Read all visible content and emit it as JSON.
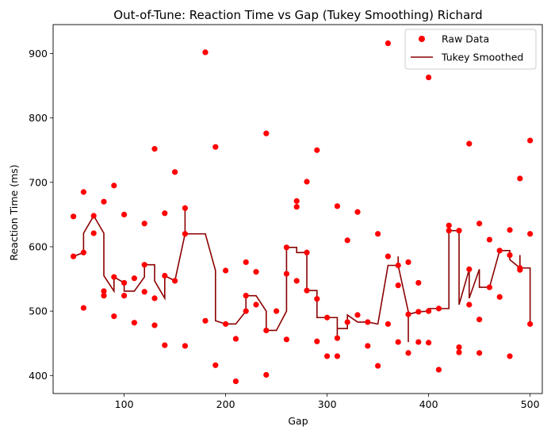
{
  "chart_data": {
    "type": "scatter",
    "title": "Out-of-Tune: Reaction Time vs Gap (Tukey Smoothing) Richard",
    "xlabel": "Gap",
    "ylabel": "Reaction Time (ms)",
    "xlim": [
      30,
      512
    ],
    "ylim": [
      372,
      945
    ],
    "xticks": [
      100,
      200,
      300,
      400,
      500
    ],
    "yticks": [
      400,
      500,
      600,
      700,
      800,
      900
    ],
    "grid": false,
    "legend_position": "top-right",
    "colors": {
      "raw": "#ff0000",
      "smoothed": "#8b0000"
    },
    "series": [
      {
        "name": "Raw Data",
        "kind": "scatter",
        "points": [
          [
            50,
            647
          ],
          [
            50,
            585
          ],
          [
            60,
            685
          ],
          [
            60,
            591
          ],
          [
            60,
            505
          ],
          [
            70,
            648
          ],
          [
            70,
            621
          ],
          [
            80,
            670
          ],
          [
            80,
            531
          ],
          [
            80,
            524
          ],
          [
            90,
            695
          ],
          [
            90,
            553
          ],
          [
            90,
            492
          ],
          [
            100,
            650
          ],
          [
            100,
            544
          ],
          [
            100,
            524
          ],
          [
            110,
            551
          ],
          [
            110,
            482
          ],
          [
            120,
            636
          ],
          [
            120,
            572
          ],
          [
            120,
            530
          ],
          [
            130,
            752
          ],
          [
            130,
            520
          ],
          [
            130,
            478
          ],
          [
            140,
            652
          ],
          [
            140,
            555
          ],
          [
            140,
            447
          ],
          [
            150,
            716
          ],
          [
            150,
            547
          ],
          [
            160,
            660
          ],
          [
            160,
            620
          ],
          [
            160,
            446
          ],
          [
            180,
            902
          ],
          [
            180,
            485
          ],
          [
            190,
            755
          ],
          [
            190,
            416
          ],
          [
            200,
            563
          ],
          [
            200,
            480
          ],
          [
            210,
            457
          ],
          [
            210,
            391
          ],
          [
            220,
            576
          ],
          [
            220,
            524
          ],
          [
            220,
            500
          ],
          [
            230,
            561
          ],
          [
            230,
            510
          ],
          [
            240,
            776
          ],
          [
            240,
            470
          ],
          [
            240,
            401
          ],
          [
            250,
            500
          ],
          [
            260,
            599
          ],
          [
            260,
            558
          ],
          [
            260,
            456
          ],
          [
            270,
            671
          ],
          [
            270,
            662
          ],
          [
            270,
            547
          ],
          [
            280,
            701
          ],
          [
            280,
            591
          ],
          [
            280,
            532
          ],
          [
            290,
            750
          ],
          [
            290,
            519
          ],
          [
            290,
            453
          ],
          [
            300,
            490
          ],
          [
            300,
            430
          ],
          [
            310,
            663
          ],
          [
            310,
            458
          ],
          [
            310,
            430
          ],
          [
            320,
            610
          ],
          [
            320,
            483
          ],
          [
            330,
            654
          ],
          [
            330,
            494
          ],
          [
            340,
            483
          ],
          [
            340,
            446
          ],
          [
            350,
            620
          ],
          [
            350,
            415
          ],
          [
            360,
            916
          ],
          [
            360,
            585
          ],
          [
            360,
            480
          ],
          [
            370,
            571
          ],
          [
            370,
            540
          ],
          [
            370,
            452
          ],
          [
            380,
            576
          ],
          [
            380,
            495
          ],
          [
            380,
            435
          ],
          [
            390,
            544
          ],
          [
            390,
            499
          ],
          [
            390,
            452
          ],
          [
            400,
            863
          ],
          [
            400,
            500
          ],
          [
            400,
            451
          ],
          [
            410,
            504
          ],
          [
            410,
            409
          ],
          [
            420,
            633
          ],
          [
            420,
            625
          ],
          [
            430,
            625
          ],
          [
            430,
            444
          ],
          [
            430,
            436
          ],
          [
            440,
            760
          ],
          [
            440,
            565
          ],
          [
            440,
            510
          ],
          [
            450,
            636
          ],
          [
            450,
            487
          ],
          [
            450,
            435
          ],
          [
            460,
            611
          ],
          [
            460,
            537
          ],
          [
            470,
            594
          ],
          [
            470,
            522
          ],
          [
            480,
            626
          ],
          [
            480,
            587
          ],
          [
            480,
            430
          ],
          [
            490,
            706
          ],
          [
            490,
            567
          ],
          [
            490,
            564
          ],
          [
            500,
            765
          ],
          [
            500,
            620
          ],
          [
            500,
            480
          ]
        ]
      },
      {
        "name": "Tukey Smoothed",
        "kind": "line",
        "points": [
          [
            50,
            585
          ],
          [
            60,
            591
          ],
          [
            60,
            621
          ],
          [
            70,
            648
          ],
          [
            80,
            621
          ],
          [
            80,
            555
          ],
          [
            90,
            531
          ],
          [
            90,
            553
          ],
          [
            100,
            544
          ],
          [
            100,
            531
          ],
          [
            110,
            531
          ],
          [
            120,
            553
          ],
          [
            120,
            572
          ],
          [
            130,
            572
          ],
          [
            130,
            547
          ],
          [
            140,
            520
          ],
          [
            140,
            555
          ],
          [
            150,
            547
          ],
          [
            160,
            620
          ],
          [
            160,
            660
          ],
          [
            160,
            620
          ],
          [
            180,
            620
          ],
          [
            190,
            563
          ],
          [
            190,
            485
          ],
          [
            200,
            480
          ],
          [
            210,
            480
          ],
          [
            220,
            500
          ],
          [
            220,
            524
          ],
          [
            230,
            524
          ],
          [
            240,
            500
          ],
          [
            240,
            470
          ],
          [
            250,
            470
          ],
          [
            260,
            500
          ],
          [
            260,
            599
          ],
          [
            270,
            599
          ],
          [
            270,
            591
          ],
          [
            280,
            591
          ],
          [
            280,
            532
          ],
          [
            290,
            532
          ],
          [
            290,
            490
          ],
          [
            300,
            490
          ],
          [
            310,
            490
          ],
          [
            310,
            458
          ],
          [
            310,
            473
          ],
          [
            320,
            473
          ],
          [
            320,
            494
          ],
          [
            330,
            483
          ],
          [
            340,
            483
          ],
          [
            350,
            480
          ],
          [
            360,
            571
          ],
          [
            370,
            571
          ],
          [
            370,
            585
          ],
          [
            370,
            571
          ],
          [
            380,
            499
          ],
          [
            380,
            452
          ],
          [
            380,
            495
          ],
          [
            390,
            499
          ],
          [
            400,
            500
          ],
          [
            400,
            504
          ],
          [
            410,
            504
          ],
          [
            420,
            504
          ],
          [
            420,
            625
          ],
          [
            430,
            625
          ],
          [
            430,
            510
          ],
          [
            440,
            565
          ],
          [
            440,
            520
          ],
          [
            450,
            565
          ],
          [
            450,
            537
          ],
          [
            460,
            537
          ],
          [
            460,
            537
          ],
          [
            470,
            594
          ],
          [
            480,
            594
          ],
          [
            480,
            587
          ],
          [
            480,
            594
          ],
          [
            480,
            580
          ],
          [
            490,
            567
          ],
          [
            490,
            587
          ],
          [
            490,
            567
          ],
          [
            500,
            567
          ],
          [
            500,
            480
          ]
        ]
      }
    ]
  }
}
